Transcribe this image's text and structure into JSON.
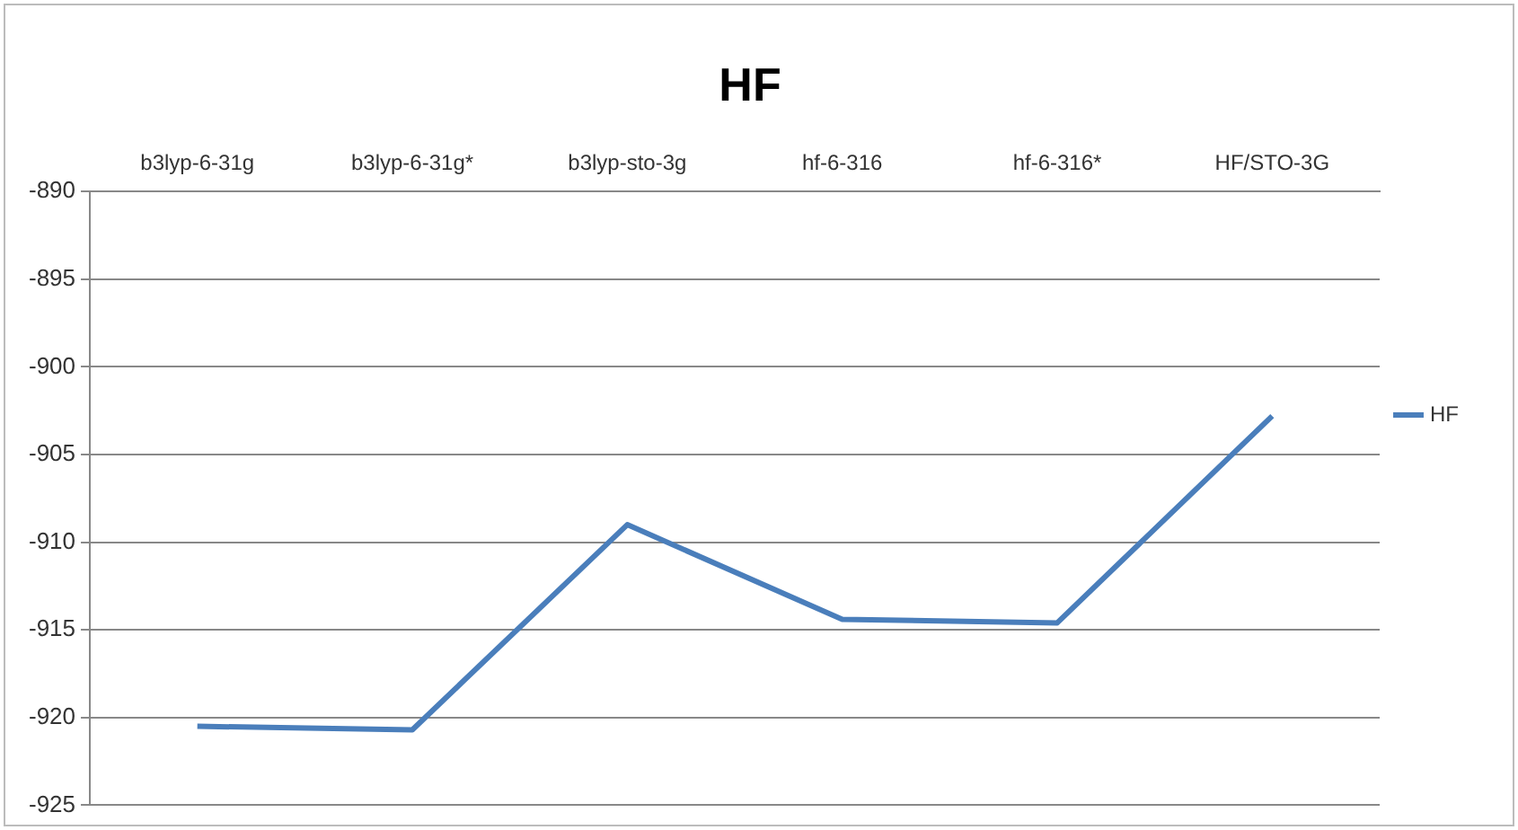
{
  "chart_data": {
    "type": "line",
    "title": "HF",
    "categories": [
      "b3lyp-6-31g",
      "b3lyp-6-31g*",
      "b3lyp-sto-3g",
      "hf-6-316",
      "hf-6-316*",
      "HF/STO-3G"
    ],
    "series": [
      {
        "name": "HF",
        "color": "#4a7ebb",
        "values": [
          -920.5,
          -920.7,
          -909,
          -914.4,
          -914.6,
          -902.8
        ]
      }
    ],
    "ylim": [
      -925,
      -890
    ],
    "yticks": [
      -925,
      -920,
      -915,
      -910,
      -905,
      -900,
      -895,
      -890
    ],
    "grid": "y",
    "legend": "right",
    "marker": "none",
    "line_style": "solid"
  }
}
